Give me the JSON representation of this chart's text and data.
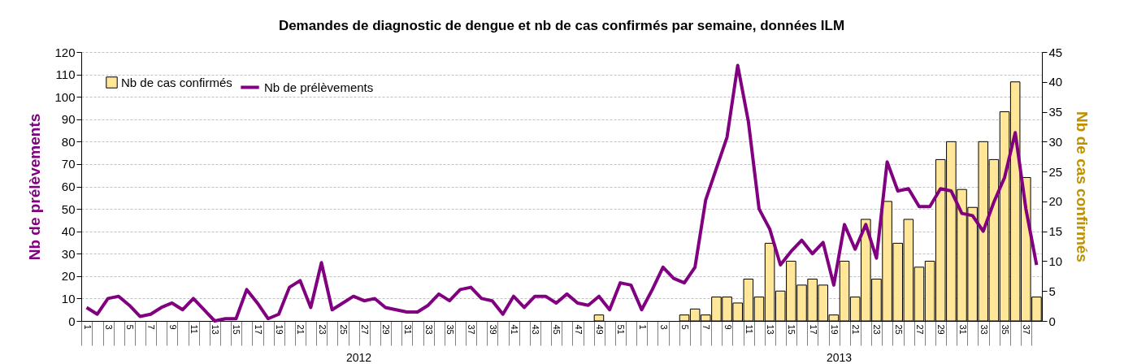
{
  "chart_data": {
    "type": "bar",
    "title": "Demandes de diagnostic de dengue et nb de cas confirmés par semaine, données ILM",
    "ylabel": "Nb de prélèvements",
    "y2label": "Nb de cas confirmés",
    "categories": [
      "1",
      null,
      "3",
      null,
      "5",
      null,
      "7",
      null,
      "9",
      null,
      "11",
      null,
      "13",
      null,
      "15",
      null,
      "17",
      null,
      "19",
      null,
      "21",
      null,
      "23",
      null,
      "25",
      null,
      "27",
      null,
      "29",
      null,
      "31",
      null,
      "33",
      null,
      "35",
      null,
      "37",
      null,
      "39",
      null,
      "41",
      null,
      "43",
      null,
      "45",
      null,
      "47",
      null,
      "49",
      null,
      "51",
      null,
      "1",
      null,
      "3",
      null,
      "5",
      null,
      "7",
      null,
      "9",
      null,
      "11",
      null,
      "13",
      null,
      "15",
      null,
      "17",
      null,
      "19",
      null,
      "21",
      null,
      "23",
      null,
      "25",
      null,
      "27",
      null,
      "29",
      null,
      "31",
      null,
      "33",
      null,
      "35",
      null,
      "37",
      null
    ],
    "series": [
      {
        "name": "Nb de cas confirmés",
        "axis": "y2",
        "color": "#ffe699",
        "values": [
          null,
          null,
          null,
          null,
          null,
          null,
          null,
          null,
          null,
          null,
          null,
          null,
          null,
          null,
          null,
          null,
          null,
          null,
          null,
          null,
          null,
          null,
          null,
          null,
          null,
          null,
          null,
          null,
          null,
          null,
          null,
          null,
          null,
          null,
          null,
          null,
          null,
          null,
          null,
          null,
          null,
          null,
          null,
          null,
          null,
          null,
          null,
          null,
          1,
          null,
          null,
          null,
          null,
          null,
          null,
          null,
          1,
          2,
          1,
          4,
          4,
          3,
          7,
          4,
          13,
          5,
          10,
          6,
          7,
          6,
          1,
          10,
          4,
          17,
          7,
          20,
          13,
          17,
          9,
          10,
          27,
          30,
          22,
          19,
          30,
          27,
          35,
          40,
          24,
          4
        ]
      },
      {
        "name": "Nb de prélèvements",
        "type": "line",
        "axis": "y",
        "color": "#800080",
        "values": [
          6,
          3,
          10,
          11,
          7,
          2,
          3,
          6,
          8,
          5,
          10,
          5,
          0,
          1,
          1,
          14,
          8,
          1,
          3,
          15,
          18,
          6,
          26,
          5,
          8,
          11,
          9,
          10,
          6,
          5,
          4,
          4,
          7,
          12,
          9,
          14,
          15,
          10,
          9,
          3,
          11,
          6,
          11,
          11,
          8,
          12,
          8,
          7,
          11,
          5,
          17,
          16,
          5,
          14,
          24,
          19,
          17,
          24,
          54,
          68,
          82,
          114,
          89,
          50,
          41,
          25,
          31,
          36,
          30,
          35,
          16,
          43,
          32,
          43,
          28,
          71,
          58,
          59,
          51,
          51,
          59,
          58,
          48,
          47,
          40,
          53,
          64,
          84,
          50,
          25
        ]
      }
    ],
    "ylim": [
      0,
      120
    ],
    "yticks": [
      0,
      10,
      20,
      30,
      40,
      50,
      60,
      70,
      80,
      90,
      100,
      110,
      120
    ],
    "y2lim": [
      0,
      45
    ],
    "y2ticks": [
      0,
      5,
      10,
      15,
      20,
      25,
      30,
      35,
      40,
      45
    ],
    "grid": "y",
    "legend": "top left",
    "line_style": "solid",
    "annotations": [
      "2012",
      "2013"
    ]
  }
}
